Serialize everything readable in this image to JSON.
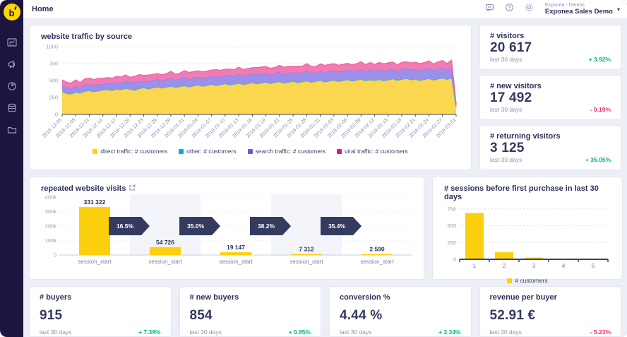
{
  "colors": {
    "accent_yellow": "#ffd500",
    "green": "#00b87e",
    "red": "#ee3060",
    "sidebar_bg": "#1b1540",
    "arrow_navy": "#343b5f",
    "bar_yellow": "#fdd00f",
    "axis_dark": "#3f4466",
    "grid": "#dcdfec",
    "muted_text": "#8f93b0"
  },
  "sidebar": {
    "logo": "b",
    "items": [
      {
        "icon": "dashboards-icon"
      },
      {
        "icon": "campaigns-megaphone-icon"
      },
      {
        "icon": "analyses-pie-icon"
      },
      {
        "icon": "data-database-icon"
      },
      {
        "icon": "projects-folder-icon"
      }
    ]
  },
  "header": {
    "title": "Home",
    "icons": [
      "chat-icon",
      "help-icon",
      "gear-icon"
    ],
    "account_group": "Exponea - Demos",
    "account_project": "Exponea Sales Demo",
    "caret": "▾"
  },
  "kpis_right": [
    {
      "title": "# visitors",
      "value": "20 617",
      "period": "last 30 days",
      "delta": "+ 3.92%",
      "trend": "up"
    },
    {
      "title": "# new visitors",
      "value": "17 492",
      "period": "last 30 days",
      "delta": "- 0.19%",
      "trend": "down"
    },
    {
      "title": "# returning visitors",
      "value": "3 125",
      "period": "last 30 days",
      "delta": "+ 35.05%",
      "trend": "up"
    }
  ],
  "kpis_bottom": [
    {
      "title": "# buyers",
      "value": "915",
      "period": "last 30 days",
      "delta": "+ 7.39%",
      "trend": "up"
    },
    {
      "title": "# new buyers",
      "value": "854",
      "period": "last 30 days",
      "delta": "+ 0.95%",
      "trend": "up"
    },
    {
      "title": "conversion %",
      "value": "4.44 %",
      "period": "last 30 days",
      "delta": "+ 3.34%",
      "trend": "up"
    },
    {
      "title": "revenue per buyer",
      "value": "52.91 €",
      "period": "last 30 days",
      "delta": "- 5.23%",
      "trend": "down"
    }
  ],
  "chart_data": [
    {
      "id": "traffic",
      "type": "area",
      "stacked": true,
      "title": "website traffic by source",
      "ylim": [
        0,
        1000
      ],
      "yticks": [
        0,
        250,
        500,
        750,
        1000
      ],
      "grid": true,
      "legend_position": "bottom",
      "x_tick_labels": [
        "2018-12-05",
        "2018-12-08",
        "2018-12-11",
        "2018-12-14",
        "2018-12-17",
        "2018-12-20",
        "2018-12-23",
        "2018-12-26",
        "2018-12-29",
        "2019-01-01",
        "2019-01-04",
        "2019-01-07",
        "2019-01-10",
        "2019-01-13",
        "2019-01-16",
        "2019-01-19",
        "2019-01-22",
        "2019-01-25",
        "2019-01-28",
        "2019-01-31",
        "2019-02-03",
        "2019-02-06",
        "2019-02-09",
        "2019-02-12",
        "2019-02-15",
        "2019-02-18",
        "2019-02-21",
        "2019-02-24",
        "2019-02-27",
        "2019-03-02"
      ],
      "x_tick_every": 3,
      "series": [
        {
          "name": "direct traffic: # customers",
          "swatch": "#ffd500",
          "fill": "#fad74f",
          "stroke": "#f3c53d",
          "values": [
            335,
            305,
            298,
            322,
            310,
            338,
            348,
            330,
            342,
            356,
            362,
            348,
            370,
            358,
            382,
            368,
            352,
            378,
            390,
            372,
            388,
            402,
            386,
            398,
            412,
            394,
            406,
            420,
            402,
            416,
            430,
            412,
            426,
            440,
            422,
            436,
            450,
            430,
            444,
            458,
            436,
            452,
            466,
            446,
            460,
            474,
            452,
            468,
            480,
            458,
            472,
            486,
            464,
            478,
            492,
            470,
            484,
            498,
            476,
            490,
            504,
            482,
            496,
            510,
            488,
            502,
            516,
            492,
            506,
            498,
            512,
            494,
            508,
            522,
            500,
            514,
            528,
            506,
            518,
            496,
            512,
            526,
            504,
            520,
            534,
            512,
            540,
            108
          ]
        },
        {
          "name": "other: # customers",
          "swatch": "#00a9e0",
          "fill": "#35bfd9",
          "stroke": "#2ab9d6",
          "values": [
            5,
            5,
            5,
            5,
            5,
            5,
            5,
            5,
            5,
            5,
            5,
            5,
            5,
            5,
            5,
            5,
            5,
            5,
            5,
            5,
            5,
            5,
            5,
            5,
            5,
            5,
            5,
            5,
            5,
            5,
            5,
            5,
            5,
            5,
            5,
            5,
            5,
            5,
            5,
            5,
            5,
            5,
            5,
            5,
            5,
            5,
            5,
            5,
            5,
            5,
            5,
            5,
            5,
            5,
            5,
            5,
            5,
            5,
            5,
            5,
            5,
            5,
            5,
            5,
            5,
            5,
            5,
            5,
            5,
            5,
            5,
            5,
            5,
            5,
            5,
            5,
            5,
            5,
            5,
            5,
            5,
            5,
            5,
            5,
            5,
            5,
            5,
            4
          ]
        },
        {
          "name": "search traffic: # customers",
          "swatch": "#6e5bd4",
          "fill": "#9b8fea",
          "stroke": "#8d80e6",
          "values": [
            86,
            92,
            80,
            94,
            84,
            98,
            90,
            102,
            96,
            88,
            104,
            94,
            108,
            98,
            112,
            102,
            116,
            106,
            98,
            112,
            108,
            118,
            104,
            114,
            122,
            108,
            118,
            128,
            112,
            122,
            118,
            128,
            112,
            122,
            132,
            118,
            128,
            136,
            122,
            132,
            128,
            118,
            132,
            142,
            128,
            136,
            122,
            132,
            142,
            128,
            136,
            128,
            142,
            132,
            146,
            136,
            128,
            142,
            132,
            146,
            138,
            146,
            132,
            142,
            150,
            138,
            146,
            138,
            150,
            142,
            146,
            138,
            150,
            142,
            134,
            146,
            154,
            142,
            150,
            138,
            146,
            154,
            142,
            150,
            146,
            138,
            150,
            30
          ]
        },
        {
          "name": "viral traffic: # customers",
          "swatch": "#ef0e8e",
          "fill": "#f17cb4",
          "stroke": "#ee5fa7",
          "values": [
            84,
            74,
            80,
            88,
            70,
            84,
            94,
            78,
            88,
            84,
            74,
            88,
            80,
            92,
            84,
            74,
            88,
            98,
            84,
            92,
            88,
            78,
            92,
            84,
            98,
            88,
            80,
            94,
            102,
            88,
            92,
            84,
            98,
            88,
            102,
            92,
            84,
            98,
            88,
            102,
            94,
            102,
            88,
            98,
            106,
            92,
            102,
            88,
            98,
            106,
            98,
            88,
            102,
            94,
            106,
            98,
            88,
            102,
            110,
            98,
            102,
            94,
            106,
            98,
            90,
            102,
            110,
            98,
            106,
            94,
            102,
            110,
            98,
            106,
            94,
            102,
            90,
            106,
            98,
            110,
            102,
            106,
            94,
            102,
            110,
            98,
            106,
            22
          ]
        }
      ]
    },
    {
      "id": "funnel",
      "type": "bar",
      "title": "repeated website visits",
      "categories": [
        "session_start",
        "session_start",
        "session_start",
        "session_start",
        "session_start"
      ],
      "values": [
        331322,
        54726,
        19147,
        7312,
        2590
      ],
      "value_labels": [
        "331 322",
        "54 726",
        "19 147",
        "7 312",
        "2 590"
      ],
      "conversions": [
        "16.5%",
        "35.0%",
        "38.2%",
        "35.4%"
      ],
      "ylim": [
        0,
        400000
      ],
      "ytick_labels": [
        "0",
        "100k",
        "200k",
        "300k",
        "400k"
      ],
      "yticks": [
        0,
        100000,
        200000,
        300000,
        400000
      ],
      "bar_color": "#fdd00f",
      "grid": false
    },
    {
      "id": "sessions",
      "type": "bar",
      "title": "# sessions before first purchase in last 30 days",
      "categories": [
        "1",
        "2",
        "3",
        "4",
        "5"
      ],
      "values": [
        690,
        105,
        25,
        8,
        2
      ],
      "ylim": [
        0,
        800
      ],
      "yticks": [
        0,
        250,
        500,
        750
      ],
      "bar_color": "#fdd00f",
      "grid": true,
      "legend": "# customers",
      "legend_position": "bottom"
    }
  ]
}
